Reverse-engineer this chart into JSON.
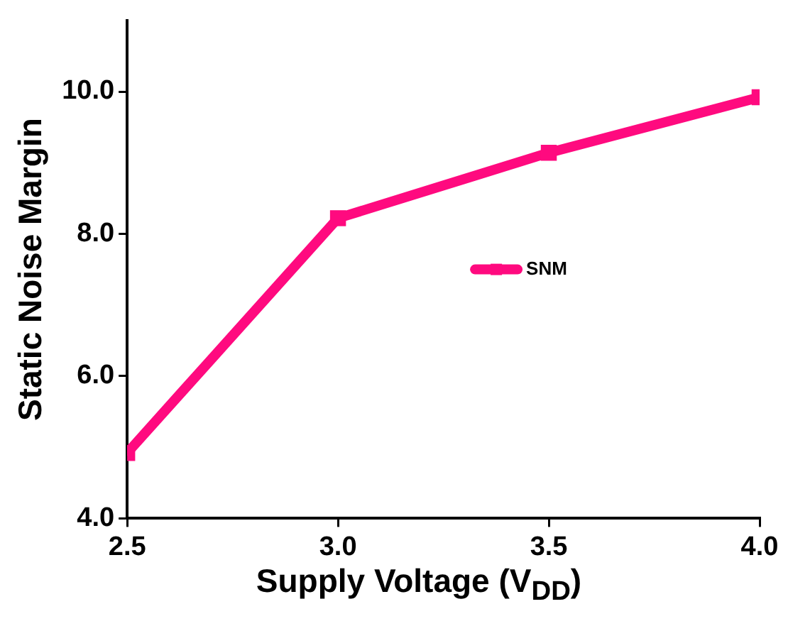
{
  "chart_data": {
    "type": "line",
    "xlabel": "Supply Voltage (V$_{DD}$)",
    "ylabel": "Static Noise Margin",
    "x": [
      2.5,
      3.0,
      3.5,
      4.0
    ],
    "series": [
      {
        "name": "SNM",
        "color": "#ff0a7f",
        "values": [
          4.92,
          8.22,
          9.14,
          9.92
        ]
      }
    ],
    "xlim": [
      2.5,
      4.0
    ],
    "xticks": [
      {
        "value": 2.5,
        "label": "2.5"
      },
      {
        "value": 3.0,
        "label": "3.0"
      },
      {
        "value": 3.5,
        "label": "3.5"
      },
      {
        "value": 4.0,
        "label": "4.0"
      }
    ],
    "ylim": [
      4,
      11
    ],
    "yticks": [
      {
        "value": 4,
        "label": "4.0"
      },
      {
        "value": 6,
        "label": "6.0"
      },
      {
        "value": 8,
        "label": "8.0"
      },
      {
        "value": 10,
        "label": "10.0"
      }
    ],
    "grid": false,
    "legend": "center",
    "marker": "square",
    "line_style": "solid"
  }
}
